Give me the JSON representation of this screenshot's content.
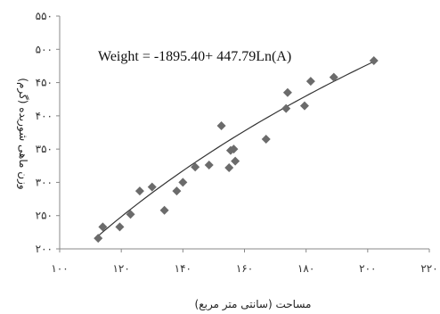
{
  "chart_data": {
    "type": "scatter",
    "title": "",
    "xlabel": "مساحت (سانتی متر مربع)",
    "ylabel": "وزن ماهی شوریده (گرم)",
    "xlim": [
      100,
      220
    ],
    "ylim": [
      200,
      550
    ],
    "x_ticks": [
      100,
      120,
      140,
      160,
      180,
      200,
      220
    ],
    "y_ticks": [
      200,
      250,
      300,
      350,
      400,
      450,
      500,
      550
    ],
    "x_tick_labels": [
      "۱۰۰",
      "۱۲۰",
      "۱۴۰",
      "۱۶۰",
      "۱۸۰",
      "۲۰۰",
      "۲۲۰"
    ],
    "y_tick_labels": [
      "۲۰۰",
      "۲۵۰",
      "۳۰۰",
      "۳۵۰",
      "۴۰۰",
      "۴۵۰",
      "۵۰۰",
      "۵۵۰"
    ],
    "grid": false,
    "marker_color": "#6b6b6b",
    "trendline_color": "#333333",
    "points": [
      {
        "x": 112.5,
        "y": 216
      },
      {
        "x": 114,
        "y": 233
      },
      {
        "x": 119.5,
        "y": 233
      },
      {
        "x": 123,
        "y": 252
      },
      {
        "x": 126,
        "y": 287
      },
      {
        "x": 130,
        "y": 293
      },
      {
        "x": 134,
        "y": 258
      },
      {
        "x": 138,
        "y": 287
      },
      {
        "x": 140,
        "y": 300
      },
      {
        "x": 144,
        "y": 323
      },
      {
        "x": 148.5,
        "y": 326
      },
      {
        "x": 152.5,
        "y": 385
      },
      {
        "x": 155,
        "y": 322
      },
      {
        "x": 155.5,
        "y": 348
      },
      {
        "x": 156.5,
        "y": 350
      },
      {
        "x": 157,
        "y": 332
      },
      {
        "x": 167,
        "y": 365
      },
      {
        "x": 173.5,
        "y": 411
      },
      {
        "x": 174,
        "y": 435
      },
      {
        "x": 179.5,
        "y": 415
      },
      {
        "x": 181.5,
        "y": 452
      },
      {
        "x": 189,
        "y": 458
      },
      {
        "x": 202,
        "y": 483
      }
    ],
    "trendline": {
      "type": "logarithmic",
      "intercept": -1895.4,
      "coefficient": 447.79,
      "x_range": [
        112.5,
        202
      ],
      "label": "Weight = -1895.40+ 447.79Ln(A)"
    }
  }
}
